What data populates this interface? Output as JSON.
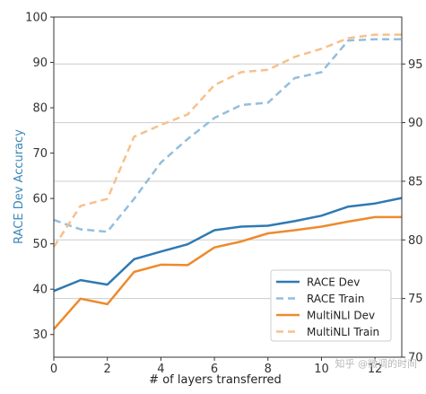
{
  "chart_data": {
    "type": "line",
    "xlabel": "# of layers transferred",
    "ylabel_left": "RACE Dev Accuracy",
    "ylabel_left_color": "#3a87b8",
    "x_ticks": [
      0,
      2,
      4,
      6,
      8,
      10,
      12
    ],
    "xlim": [
      0,
      13
    ],
    "ylim_left": [
      25,
      100
    ],
    "yticks_left": [
      30,
      40,
      50,
      60,
      70,
      80,
      90,
      100
    ],
    "ylim_right": [
      70,
      99
    ],
    "yticks_right": [
      70,
      75,
      80,
      85,
      90,
      95
    ],
    "grid": "horizontal lines at right-axis ticks",
    "legend_position": "lower-right",
    "series": [
      {
        "name": "RACE Dev",
        "axis": "left",
        "style": "solid",
        "color": "#2e7ab3",
        "x": [
          0,
          1,
          2,
          3,
          4,
          5,
          6,
          7,
          8,
          9,
          10,
          11,
          12,
          13
        ],
        "values": [
          39.6,
          42.0,
          41.0,
          46.6,
          48.3,
          49.9,
          53.0,
          53.8,
          54.0,
          55.0,
          56.2,
          58.2,
          58.9,
          60.1
        ]
      },
      {
        "name": "RACE Train",
        "axis": "right",
        "style": "dashed",
        "color": "#94bedd",
        "x": [
          0,
          1,
          2,
          3,
          4,
          5,
          6,
          7,
          8,
          9,
          10,
          11,
          12,
          13
        ],
        "values": [
          81.7,
          80.9,
          80.7,
          83.5,
          86.6,
          88.6,
          90.4,
          91.5,
          91.7,
          93.8,
          94.3,
          97.0,
          97.1,
          97.1
        ]
      },
      {
        "name": "MultiNLI Dev",
        "axis": "left",
        "style": "solid",
        "color": "#ee8a2c",
        "x": [
          0,
          1,
          2,
          3,
          4,
          5,
          6,
          7,
          8,
          9,
          10,
          11,
          12,
          13
        ],
        "values": [
          31.2,
          37.9,
          36.7,
          43.8,
          45.4,
          45.3,
          49.2,
          50.5,
          52.3,
          53.0,
          53.8,
          54.9,
          55.9,
          55.9
        ]
      },
      {
        "name": "MultiNLI Train",
        "axis": "right",
        "style": "dashed",
        "color": "#f7c08c",
        "x": [
          0,
          1,
          2,
          3,
          4,
          5,
          6,
          7,
          8,
          9,
          10,
          11,
          12,
          13
        ],
        "values": [
          79.4,
          82.9,
          83.5,
          88.8,
          89.8,
          90.7,
          93.2,
          94.3,
          94.5,
          95.6,
          96.3,
          97.2,
          97.5,
          97.5
        ]
      }
    ]
  },
  "watermark": "知乎 @微调的时间"
}
